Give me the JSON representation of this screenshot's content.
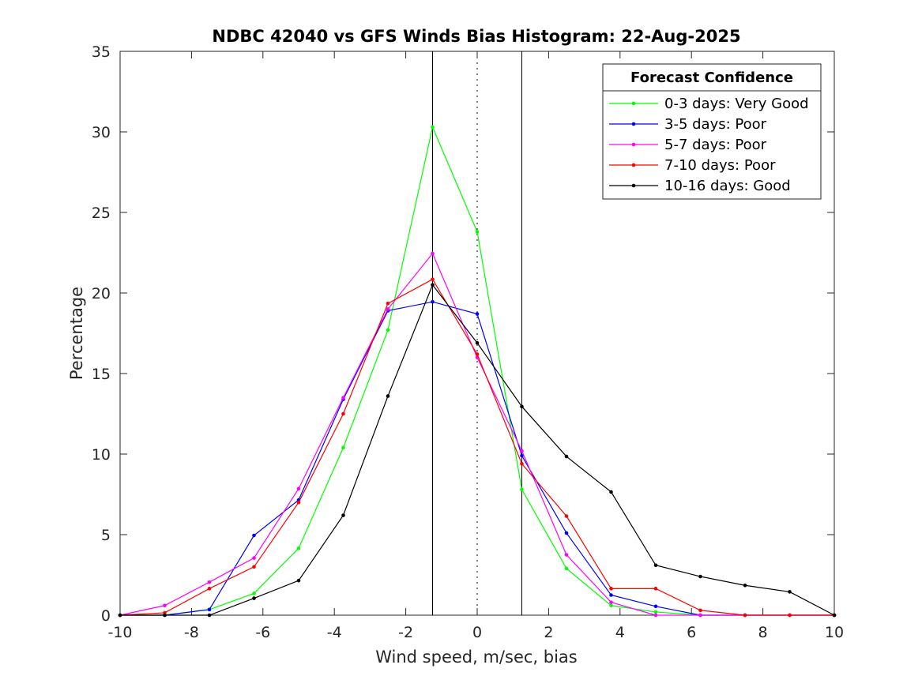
{
  "chart_data": {
    "type": "line",
    "title": "NDBC 42040 vs GFS Winds Bias Histogram: 22-Aug-2025",
    "xlabel": "Wind speed, m/sec, bias",
    "ylabel": "Percentage",
    "xlim": [
      -10,
      10
    ],
    "ylim": [
      0,
      35
    ],
    "xticks": [
      -10,
      -8,
      -6,
      -4,
      -2,
      0,
      2,
      4,
      6,
      8,
      10
    ],
    "yticks": [
      0,
      5,
      10,
      15,
      20,
      25,
      30,
      35
    ],
    "grid": false,
    "vertical_lines": [
      {
        "x": -1.25,
        "style": "solid"
      },
      {
        "x": 0,
        "style": "dotted"
      },
      {
        "x": 1.25,
        "style": "solid"
      }
    ],
    "legend": {
      "title": "Forecast Confidence",
      "position": "top-right"
    },
    "x": [
      -10,
      -8.75,
      -7.5,
      -6.25,
      -5,
      -3.75,
      -2.5,
      -1.25,
      0,
      1.25,
      2.5,
      3.75,
      5,
      6.25,
      7.5,
      8.75,
      10
    ],
    "series": [
      {
        "name": "0-3 days: Very Good",
        "color": "#00ff00",
        "values": [
          0,
          0,
          0.35,
          1.35,
          4.15,
          10.4,
          17.7,
          30.3,
          23.8,
          7.8,
          2.9,
          0.6,
          0.2,
          0,
          0,
          0,
          0
        ]
      },
      {
        "name": "3-5 days: Poor",
        "color": "#0000ff",
        "values": [
          0,
          0,
          0.35,
          4.95,
          7.15,
          13.4,
          18.9,
          19.45,
          18.7,
          9.9,
          5.1,
          1.25,
          0.55,
          0,
          0,
          0,
          0
        ]
      },
      {
        "name": "5-7 days: Poor",
        "color": "#ff00ff",
        "values": [
          0,
          0.6,
          2.05,
          3.55,
          7.85,
          13.5,
          19.0,
          22.45,
          16.0,
          10.2,
          3.75,
          0.8,
          0,
          0,
          0,
          0,
          0
        ]
      },
      {
        "name": "7-10 days: Poor",
        "color": "#ff0000",
        "values": [
          0,
          0.15,
          1.65,
          3.0,
          7.0,
          12.5,
          19.35,
          20.85,
          16.2,
          9.4,
          6.15,
          1.65,
          1.65,
          0.3,
          0,
          0,
          0
        ]
      },
      {
        "name": "10-16 days: Good",
        "color": "#000000",
        "values": [
          0,
          0,
          0,
          1.05,
          2.15,
          6.2,
          13.6,
          20.5,
          16.9,
          12.95,
          9.85,
          7.65,
          3.1,
          2.4,
          1.85,
          1.45,
          0
        ]
      }
    ]
  }
}
